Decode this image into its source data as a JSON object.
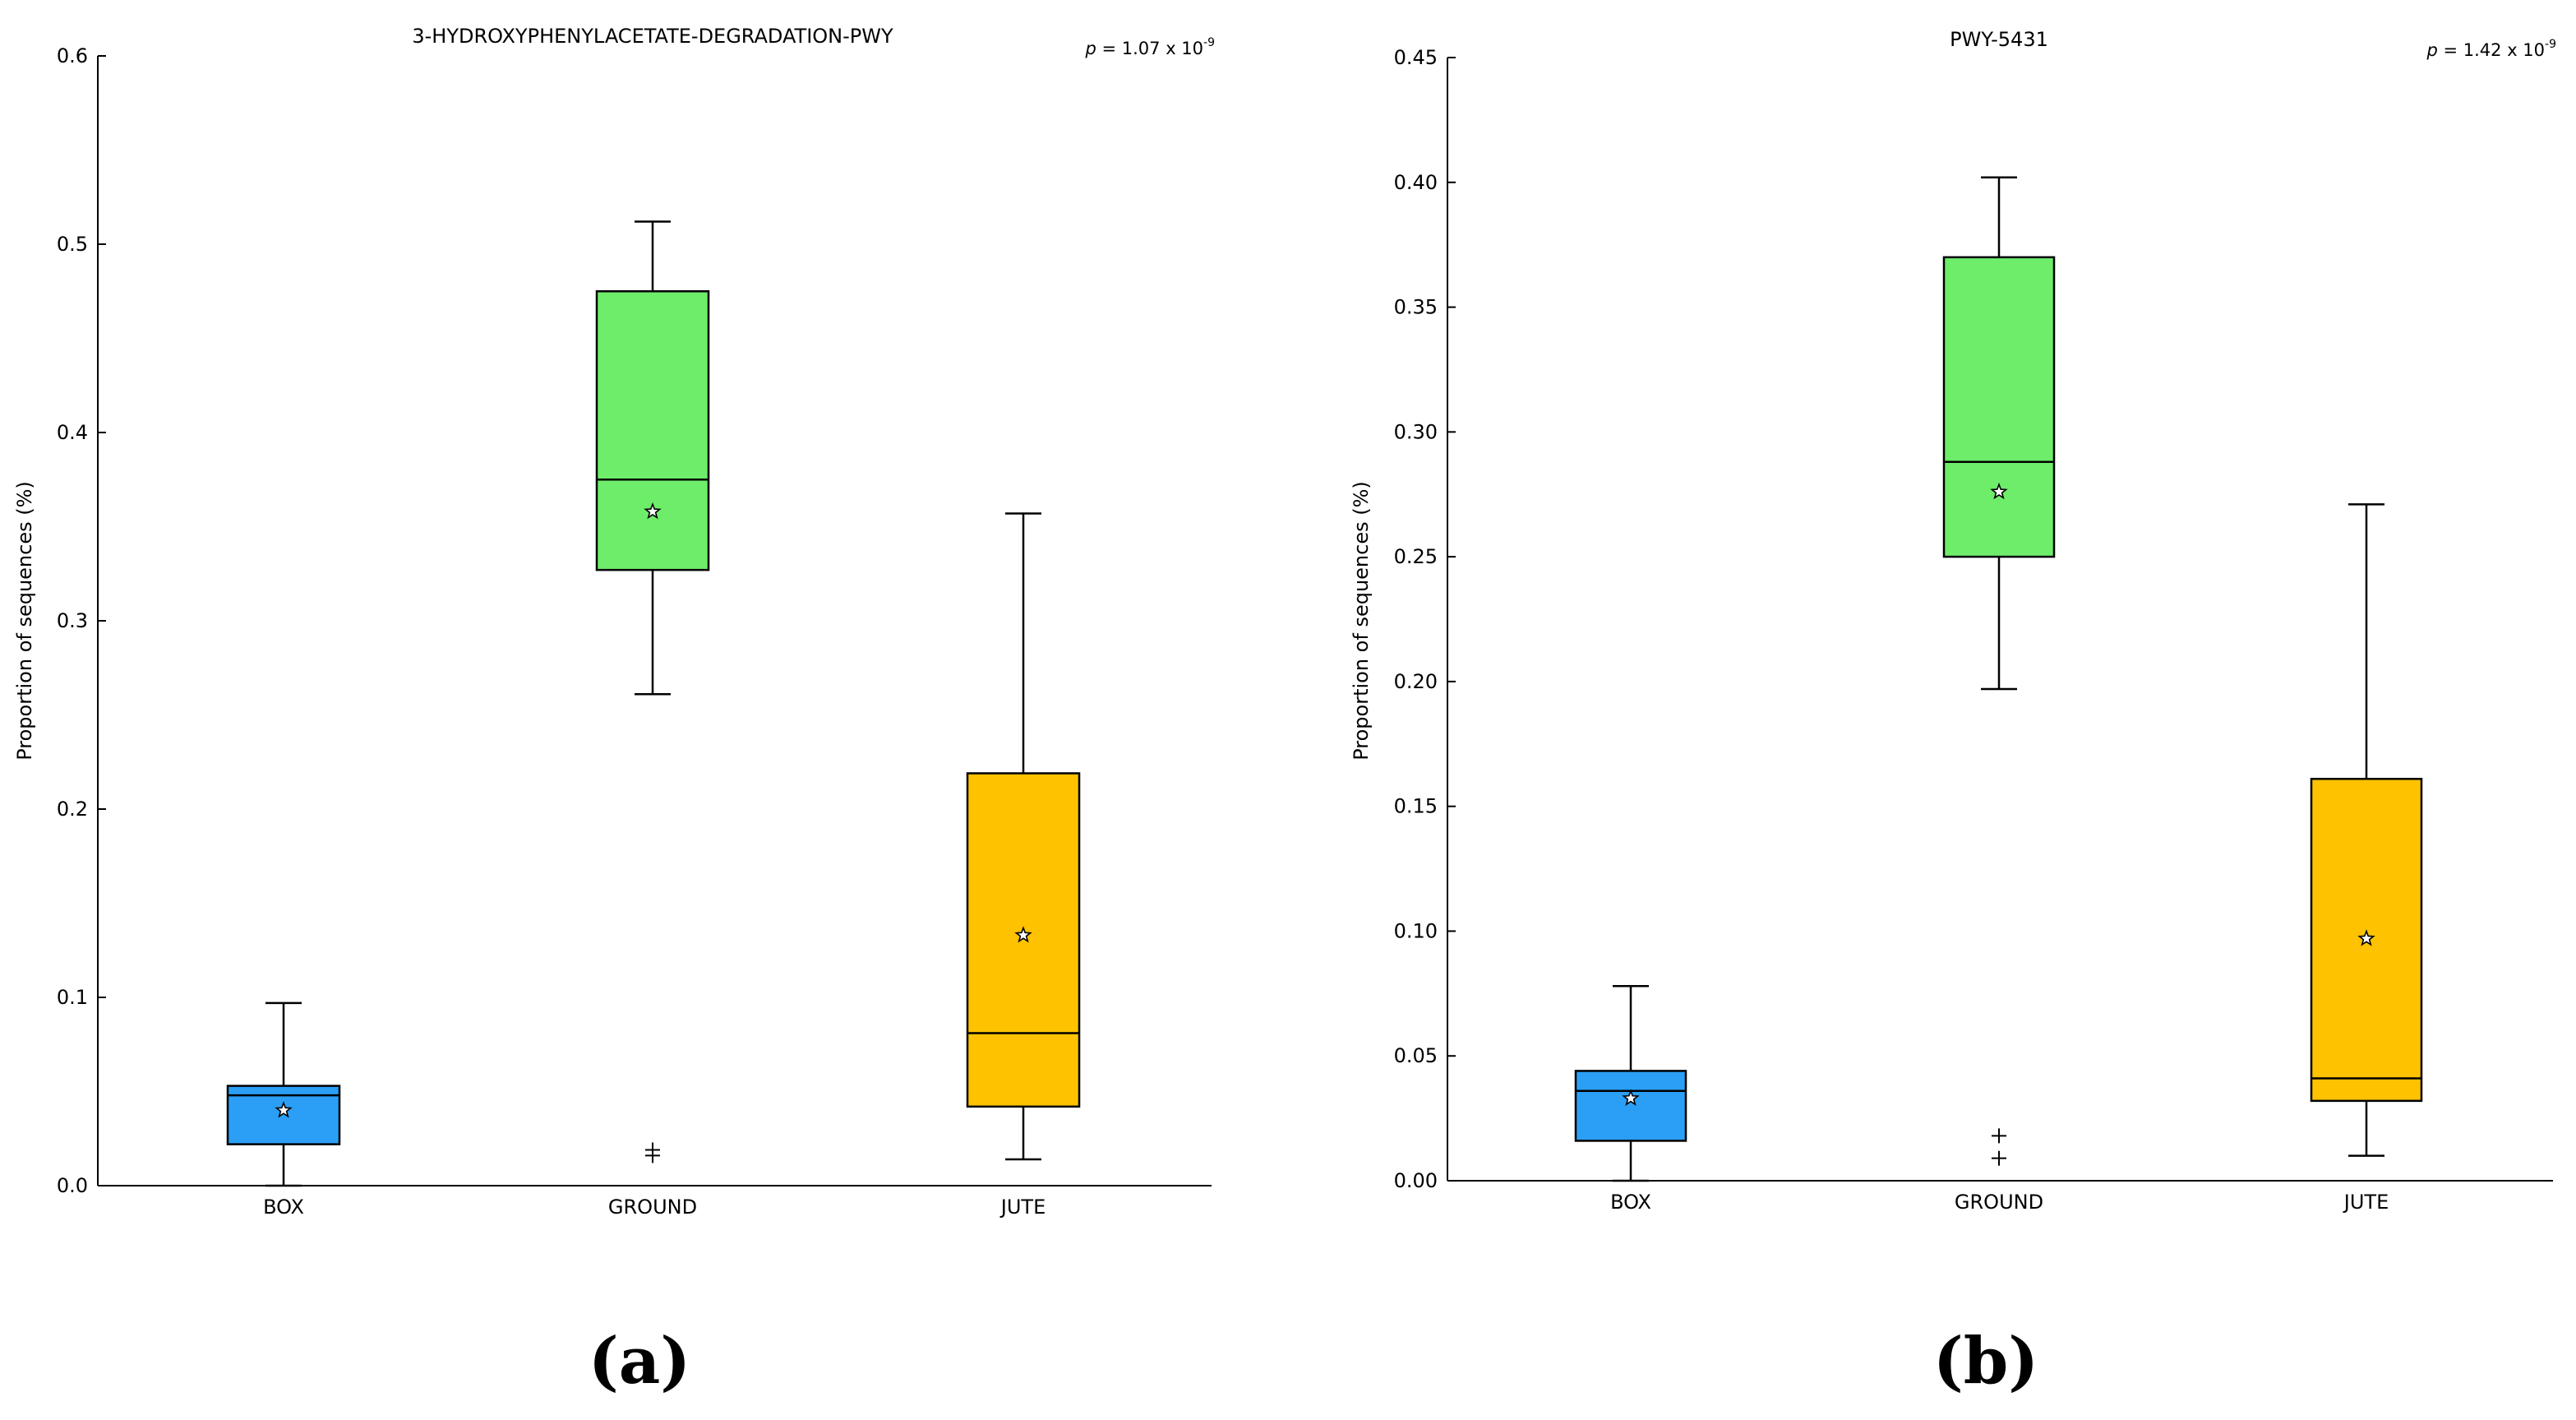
{
  "chart_data": [
    {
      "panel": "(a)",
      "type": "box",
      "title": "3-HYDROXYPHENYLACETATE-DEGRADATION-PWY",
      "p_value": {
        "prefix": "p",
        "mantissa": "= 1.07 x 10",
        "exponent": "-9"
      },
      "xlabel": "",
      "ylabel": "Proportion of sequences (%)",
      "ylim": [
        0,
        0.6
      ],
      "yticks": [
        "0.0",
        "0.1",
        "0.2",
        "0.3",
        "0.4",
        "0.5",
        "0.6"
      ],
      "categories": [
        "BOX",
        "GROUND",
        "JUTE"
      ],
      "boxes": [
        {
          "name": "BOX",
          "color": "#2b9ff5",
          "whisker_low": 0.0,
          "q1": 0.022,
          "median": 0.048,
          "q3": 0.053,
          "whisker_high": 0.097,
          "mean": 0.04,
          "outliers": []
        },
        {
          "name": "GROUND",
          "color": "#6ded6a",
          "whisker_low": 0.261,
          "q1": 0.327,
          "median": 0.375,
          "q3": 0.475,
          "whisker_high": 0.512,
          "mean": 0.358,
          "outliers": [
            0.016,
            0.019
          ]
        },
        {
          "name": "JUTE",
          "color": "#fec200",
          "whisker_low": 0.014,
          "q1": 0.042,
          "median": 0.081,
          "q3": 0.219,
          "whisker_high": 0.357,
          "mean": 0.133,
          "outliers": []
        }
      ]
    },
    {
      "panel": "(b)",
      "type": "box",
      "title": "PWY-5431",
      "p_value": {
        "prefix": "p",
        "mantissa": "= 1.42 x 10",
        "exponent": "-9"
      },
      "xlabel": "",
      "ylabel": "Proportion of sequences (%)",
      "ylim": [
        0,
        0.45
      ],
      "yticks": [
        "0.00",
        "0.05",
        "0.10",
        "0.15",
        "0.20",
        "0.25",
        "0.30",
        "0.35",
        "0.40",
        "0.45"
      ],
      "categories": [
        "BOX",
        "GROUND",
        "JUTE"
      ],
      "boxes": [
        {
          "name": "BOX",
          "color": "#2b9ff5",
          "whisker_low": 0.0,
          "q1": 0.016,
          "median": 0.036,
          "q3": 0.044,
          "whisker_high": 0.078,
          "mean": 0.033,
          "outliers": []
        },
        {
          "name": "GROUND",
          "color": "#6ded6a",
          "whisker_low": 0.197,
          "q1": 0.25,
          "median": 0.288,
          "q3": 0.37,
          "whisker_high": 0.402,
          "mean": 0.276,
          "outliers": [
            0.009,
            0.018
          ]
        },
        {
          "name": "JUTE",
          "color": "#fec200",
          "whisker_low": 0.01,
          "q1": 0.032,
          "median": 0.041,
          "q3": 0.161,
          "whisker_high": 0.271,
          "mean": 0.097,
          "outliers": []
        }
      ]
    }
  ]
}
